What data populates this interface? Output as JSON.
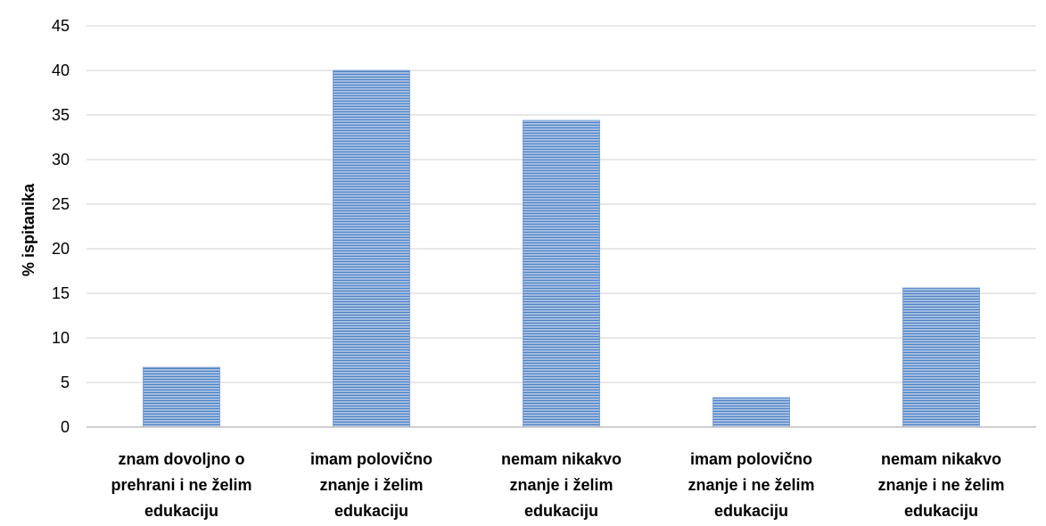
{
  "chart_data": {
    "type": "bar",
    "title": "",
    "xlabel": "",
    "ylabel": "% ispitanika",
    "ylim": [
      0,
      45
    ],
    "yticks": [
      0,
      5,
      10,
      15,
      20,
      25,
      30,
      35,
      40,
      45
    ],
    "grid": true,
    "legend": "none",
    "categories": [
      [
        "znam dovoljno o",
        "prehrani i ne želim",
        "edukaciju"
      ],
      [
        "imam polovično",
        "znanje i želim",
        "edukaciju"
      ],
      [
        "nemam nikakvo",
        "znanje i želim",
        "edukaciju"
      ],
      [
        "imam polovično",
        "znanje i ne želim",
        "edukaciju"
      ],
      [
        "nemam nikakvo",
        "znanje i ne želim",
        "edukaciju"
      ]
    ],
    "values": [
      6.7,
      40.0,
      34.4,
      3.3,
      15.6
    ],
    "colors": {
      "bar_fill": "#8eb2e0",
      "bar_stripe": "#4f81bd",
      "grid": "#d9d9d9",
      "axis": "#bfbfbf"
    }
  }
}
